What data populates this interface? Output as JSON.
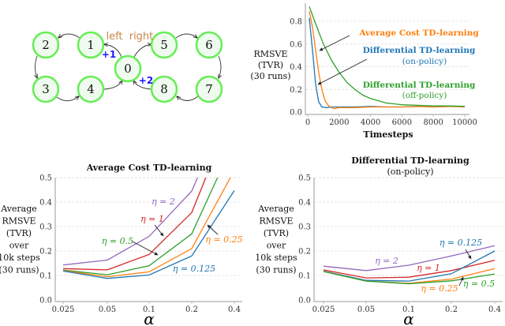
{
  "diagram": {
    "nodes": [
      "0",
      "1",
      "2",
      "3",
      "4",
      "5",
      "6",
      "7",
      "8"
    ],
    "action_left": "left",
    "action_right": "right",
    "reward_left": "+1",
    "reward_right": "+2",
    "node_fill": "#f0fbf0",
    "node_stroke": "#66ee55",
    "action_color": "#c8864a",
    "reward_color": "#1a1aff"
  },
  "chart_data": [
    {
      "type": "line",
      "title": "",
      "xlabel": "Timesteps",
      "ylabel": [
        "RMSVE",
        "(TVR)",
        "(30 runs)"
      ],
      "xlim": [
        0,
        10000
      ],
      "ylim": [
        0,
        0.95
      ],
      "xticks": [
        "0",
        "2000",
        "4000",
        "6000",
        "8000",
        "10000"
      ],
      "yticks": [
        "0.0",
        "0.2",
        "0.4",
        "0.6",
        "0.8"
      ],
      "grid": "horizontal dashed",
      "series": [
        {
          "name": "Differential TD-learning (on-policy)",
          "color": "#1f77b4",
          "x": [
            100,
            300,
            500,
            700,
            900,
            1200,
            1600,
            2000,
            3000,
            4000,
            5000,
            6000,
            7000,
            8000,
            9000,
            10000
          ],
          "y": [
            0.83,
            0.55,
            0.25,
            0.09,
            0.045,
            0.04,
            0.045,
            0.045,
            0.045,
            0.05,
            0.045,
            0.045,
            0.05,
            0.045,
            0.05,
            0.05
          ]
        },
        {
          "name": "Average Cost TD-learning",
          "color": "#ff7f0e",
          "x": [
            100,
            300,
            500,
            700,
            900,
            1100,
            1300,
            1500,
            1700,
            2000,
            3000,
            4000,
            5000,
            6000,
            7000,
            8000,
            9000,
            10000
          ],
          "y": [
            0.89,
            0.75,
            0.55,
            0.35,
            0.2,
            0.1,
            0.06,
            0.04,
            0.03,
            0.04,
            0.04,
            0.045,
            0.045,
            0.045,
            0.05,
            0.045,
            0.05,
            0.045
          ]
        },
        {
          "name": "Differential TD-learning (off-policy)",
          "color": "#2ca02c",
          "x": [
            100,
            500,
            1000,
            1500,
            2000,
            2500,
            3000,
            3500,
            4000,
            5000,
            6000,
            7000,
            8000,
            9000,
            10000
          ],
          "y": [
            0.93,
            0.78,
            0.6,
            0.46,
            0.35,
            0.26,
            0.2,
            0.15,
            0.12,
            0.08,
            0.065,
            0.06,
            0.055,
            0.055,
            0.05
          ]
        }
      ],
      "annotations": {
        "avg_cost": "Average Cost TD-learning",
        "diff_on_1": "Differential TD-learning",
        "diff_on_2": "(on-policy)",
        "diff_off_1": "Differential TD-learning",
        "diff_off_2": "(off-policy)"
      }
    },
    {
      "type": "line",
      "title": "Average Cost TD-learning",
      "xlabel": "α",
      "ylabel": [
        "Average",
        "RMSVE",
        "(TVR)",
        "over",
        "10k steps",
        "(30 runs)"
      ],
      "x_scale": "log",
      "categories": [
        "0.025",
        "0.05",
        "0.1",
        "0.2",
        "0.4"
      ],
      "ylim": [
        0,
        0.5
      ],
      "yticks": [
        "0.0",
        "0.1",
        "0.2",
        "0.3",
        "0.4",
        "0.5"
      ],
      "grid": "horizontal dashed",
      "series": [
        {
          "name": "η = 2",
          "color": "#9467bd",
          "values": [
            0.143,
            0.163,
            0.26,
            0.445,
            0.85
          ]
        },
        {
          "name": "η = 1",
          "color": "#d62728",
          "values": [
            0.128,
            0.123,
            0.186,
            0.357,
            0.79
          ]
        },
        {
          "name": "η = 0.5",
          "color": "#2ca02c",
          "values": [
            0.122,
            0.103,
            0.14,
            0.27,
            0.65
          ]
        },
        {
          "name": "η = 0.25",
          "color": "#ff7f0e",
          "values": [
            0.12,
            0.095,
            0.115,
            0.21,
            0.53
          ]
        },
        {
          "name": "η = 0.125",
          "color": "#1f77b4",
          "values": [
            0.118,
            0.088,
            0.102,
            0.18,
            0.447
          ]
        }
      ]
    },
    {
      "type": "line",
      "title": [
        "Differential TD-learning",
        "(on-policy)"
      ],
      "xlabel": "α",
      "ylabel": [
        "Average",
        "RMSVE",
        "(TVR)",
        "over",
        "10k steps",
        "(30 runs)"
      ],
      "x_scale": "log",
      "categories": [
        "0.025",
        "0.05",
        "0.1",
        "0.2",
        "0.4"
      ],
      "ylim": [
        0,
        0.5
      ],
      "yticks": [
        "0.0",
        "0.1",
        "0.2",
        "0.3",
        "0.4",
        "0.5"
      ],
      "grid": "horizontal dashed",
      "series": [
        {
          "name": "η = 2",
          "color": "#9467bd",
          "values": [
            0.138,
            0.12,
            0.142,
            0.18,
            0.222
          ]
        },
        {
          "name": "η = 1",
          "color": "#d62728",
          "values": [
            0.123,
            0.09,
            0.093,
            0.12,
            0.162
          ]
        },
        {
          "name": "η = 0.125",
          "color": "#1f77b4",
          "values": [
            0.118,
            0.08,
            0.077,
            0.107,
            0.2
          ]
        },
        {
          "name": "η = 0.25",
          "color": "#ff7f0e",
          "values": [
            0.117,
            0.077,
            0.068,
            0.085,
            0.128
          ]
        },
        {
          "name": "η = 0.5",
          "color": "#2ca02c",
          "values": [
            0.116,
            0.077,
            0.066,
            0.078,
            0.106
          ]
        }
      ]
    }
  ]
}
